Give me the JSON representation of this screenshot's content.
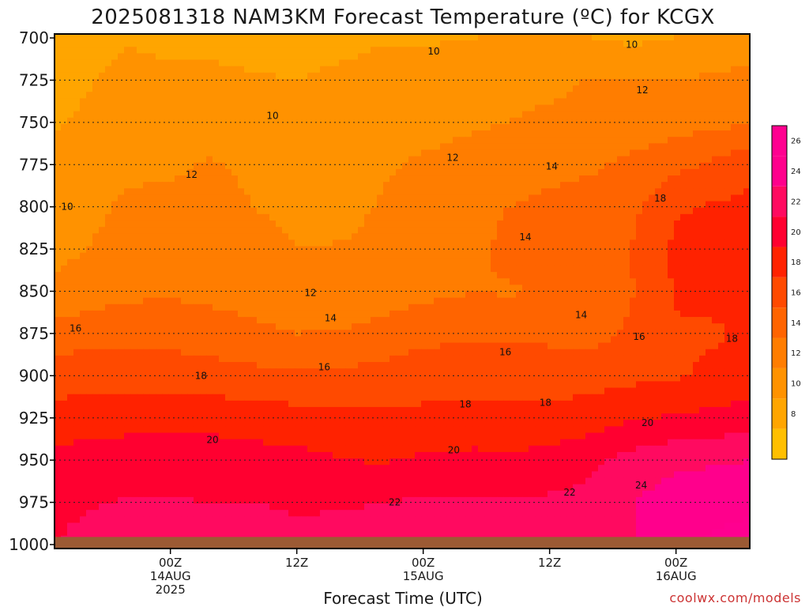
{
  "chart_data": {
    "type": "heatmap",
    "title": "2025081318 NAM3KM Forecast Temperature (ºC) for KCGX",
    "xlabel": "Forecast Time (UTC)",
    "ylabel": "",
    "y_axis": {
      "values": [
        700,
        725,
        750,
        775,
        800,
        825,
        850,
        875,
        900,
        925,
        950,
        975,
        1000
      ],
      "labels": [
        "700",
        "725",
        "750",
        "775",
        "800",
        "825",
        "850",
        "875",
        "900",
        "925",
        "950",
        "975",
        "1000"
      ],
      "range": [
        700,
        1000
      ],
      "inverted": true,
      "grid": "dotted"
    },
    "x_axis": {
      "range_hours": [
        -11,
        55
      ],
      "ticks": [
        {
          "hour": 0,
          "lines": [
            "00Z",
            "14AUG",
            "2025"
          ]
        },
        {
          "hour": 12,
          "lines": [
            "12Z"
          ]
        },
        {
          "hour": 24,
          "lines": [
            "00Z",
            "15AUG"
          ]
        },
        {
          "hour": 36,
          "lines": [
            "12Z"
          ]
        },
        {
          "hour": 48,
          "lines": [
            "00Z",
            "16AUG"
          ]
        }
      ]
    },
    "colorbar": {
      "levels": [
        8,
        10,
        12,
        14,
        16,
        18,
        20,
        22,
        24,
        26
      ],
      "range": [
        6,
        28
      ],
      "colors": [
        "#ffbf00",
        "#ffa500",
        "#ff9200",
        "#ff7d00",
        "#ff6400",
        "#ff4a00",
        "#ff2200",
        "#ff0030",
        "#ff0a60",
        "#ff008c",
        "#ff0090"
      ],
      "tick_labels": [
        "8",
        "10",
        "12",
        "14",
        "16",
        "18",
        "20",
        "22",
        "24",
        "26"
      ]
    },
    "temperature_profiles": {
      "pressure_levels": [
        700,
        725,
        750,
        775,
        800,
        825,
        850,
        875,
        900,
        925,
        950,
        975,
        1000
      ],
      "hours": [
        -11,
        -4,
        0,
        4,
        8,
        12,
        17,
        20,
        24,
        29,
        32,
        36,
        40,
        44,
        48,
        52,
        55
      ],
      "values": [
        [
          8.5,
          9.8,
          9.5,
          9.5,
          9.2,
          9.0,
          9.4,
          9.8,
          9.8,
          10.0,
          10.2,
          10.0,
          10.0,
          9.6,
          10.0,
          10.5,
          10.6
        ],
        [
          9.2,
          10.7,
          10.4,
          10.4,
          10.2,
          10.0,
          10.6,
          10.8,
          10.8,
          11.0,
          11.2,
          11.4,
          12.2,
          12.0,
          12.0,
          12.4,
          12.6
        ],
        [
          9.8,
          11.0,
          10.9,
          10.9,
          10.8,
          10.5,
          10.9,
          11.2,
          11.5,
          11.8,
          12.0,
          12.5,
          12.8,
          13.0,
          13.2,
          13.5,
          13.8
        ],
        [
          10.4,
          11.6,
          11.6,
          12.2,
          11.4,
          11.0,
          11.3,
          11.8,
          12.2,
          12.6,
          13.0,
          13.5,
          13.8,
          14.4,
          15.4,
          16.5,
          17.5
        ],
        [
          10.9,
          12.3,
          12.6,
          13.0,
          12.0,
          11.5,
          11.7,
          12.1,
          12.6,
          13.2,
          14.0,
          14.4,
          14.6,
          15.6,
          17.8,
          18.2,
          18.5
        ],
        [
          11.5,
          12.7,
          13.2,
          13.0,
          12.6,
          12.0,
          12.1,
          12.4,
          13.0,
          13.6,
          14.5,
          15.0,
          14.8,
          16.2,
          18.4,
          18.8,
          19.0
        ],
        [
          12.3,
          13.5,
          13.7,
          13.4,
          13.1,
          12.6,
          12.8,
          13.0,
          13.4,
          14.0,
          13.8,
          14.2,
          14.0,
          16.0,
          18.2,
          18.5,
          19.2
        ],
        [
          15.0,
          15.5,
          15.3,
          15.0,
          14.5,
          14.0,
          14.2,
          14.6,
          15.5,
          15.7,
          15.5,
          15.5,
          15.4,
          16.4,
          17.8,
          17.8,
          18.5
        ],
        [
          17.0,
          17.2,
          17.0,
          16.8,
          16.5,
          16.3,
          16.5,
          16.8,
          17.0,
          17.2,
          17.3,
          17.2,
          17.2,
          17.5,
          17.8,
          18.4,
          19.0
        ],
        [
          18.8,
          19.3,
          19.5,
          19.3,
          19.0,
          18.8,
          18.6,
          18.5,
          18.5,
          18.7,
          18.6,
          18.4,
          19.0,
          19.8,
          20.2,
          20.6,
          20.8
        ],
        [
          20.7,
          21.0,
          21.1,
          21.0,
          20.8,
          20.6,
          20.0,
          19.8,
          20.3,
          20.5,
          20.3,
          20.8,
          21.6,
          22.8,
          23.5,
          23.8,
          24.0
        ],
        [
          21.8,
          22.1,
          22.1,
          22.0,
          22.0,
          21.9,
          21.9,
          22.0,
          22.2,
          22.3,
          22.3,
          22.3,
          22.6,
          24.0,
          25.0,
          25.2,
          25.5
        ],
        [
          22.0,
          22.5,
          22.4,
          22.4,
          22.3,
          22.2,
          22.4,
          22.5,
          22.6,
          22.6,
          22.6,
          22.5,
          22.5,
          23.8,
          25.5,
          26.5,
          27.0
        ]
      ]
    },
    "contour_labels": [
      {
        "text": "10",
        "hour": -9.8,
        "p": 800
      },
      {
        "text": "10",
        "hour": 9.7,
        "p": 746
      },
      {
        "text": "10",
        "hour": 25,
        "p": 708
      },
      {
        "text": "10",
        "hour": 43.8,
        "p": 704
      },
      {
        "text": "12",
        "hour": 2,
        "p": 781
      },
      {
        "text": "12",
        "hour": 13.3,
        "p": 851
      },
      {
        "text": "12",
        "hour": 26.8,
        "p": 771
      },
      {
        "text": "12",
        "hour": 44.8,
        "p": 731
      },
      {
        "text": "14",
        "hour": 36.2,
        "p": 776
      },
      {
        "text": "14",
        "hour": 15.2,
        "p": 866
      },
      {
        "text": "14",
        "hour": 39,
        "p": 864
      },
      {
        "text": "14",
        "hour": 33.7,
        "p": 818
      },
      {
        "text": "16",
        "hour": -9,
        "p": 872
      },
      {
        "text": "16",
        "hour": 14.6,
        "p": 895
      },
      {
        "text": "16",
        "hour": 31.8,
        "p": 886
      },
      {
        "text": "16",
        "hour": 44.5,
        "p": 877
      },
      {
        "text": "18",
        "hour": 2.9,
        "p": 900
      },
      {
        "text": "18",
        "hour": 28,
        "p": 917
      },
      {
        "text": "18",
        "hour": 35.6,
        "p": 916
      },
      {
        "text": "18",
        "hour": 46.5,
        "p": 795
      },
      {
        "text": "18",
        "hour": 53.3,
        "p": 878
      },
      {
        "text": "20",
        "hour": 4,
        "p": 938
      },
      {
        "text": "20",
        "hour": 26.9,
        "p": 944
      },
      {
        "text": "20",
        "hour": 45.3,
        "p": 928
      },
      {
        "text": "22",
        "hour": 21.3,
        "p": 975
      },
      {
        "text": "22",
        "hour": 37.9,
        "p": 969
      },
      {
        "text": "24",
        "hour": 44.7,
        "p": 965
      }
    ]
  },
  "credit": "coolwx.com/models",
  "ground_color": "#9c5a34"
}
